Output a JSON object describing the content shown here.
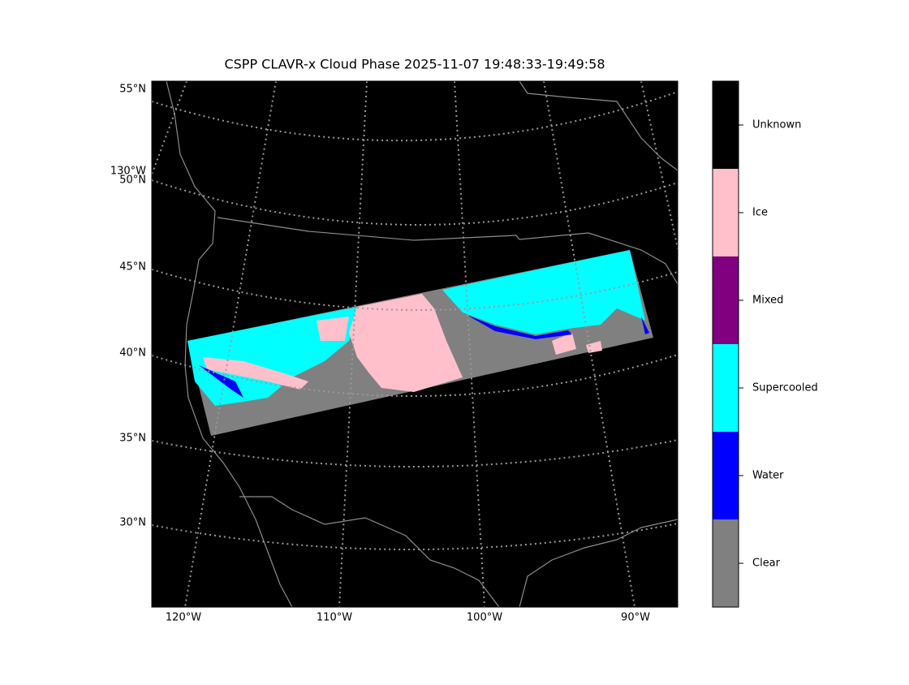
{
  "title": "CSPP CLAVR-x Cloud Phase 2025-11-07 19:48:33-19:49:58",
  "map": {
    "lat_labels": [
      "55°N",
      "50°N",
      "45°N",
      "40°N",
      "35°N",
      "30°N"
    ],
    "lon_labels": [
      "120°W",
      "110°W",
      "100°W",
      "90°W"
    ],
    "edge_lon_label": "130°W"
  },
  "colorbar": {
    "classes": [
      {
        "label": "Unknown",
        "color": "#000000"
      },
      {
        "label": "Ice",
        "color": "#ffc0cb"
      },
      {
        "label": "Mixed",
        "color": "#800080"
      },
      {
        "label": "Supercooled",
        "color": "#00ffff"
      },
      {
        "label": "Water",
        "color": "#0000ff"
      },
      {
        "label": "Clear",
        "color": "#808080"
      }
    ]
  }
}
